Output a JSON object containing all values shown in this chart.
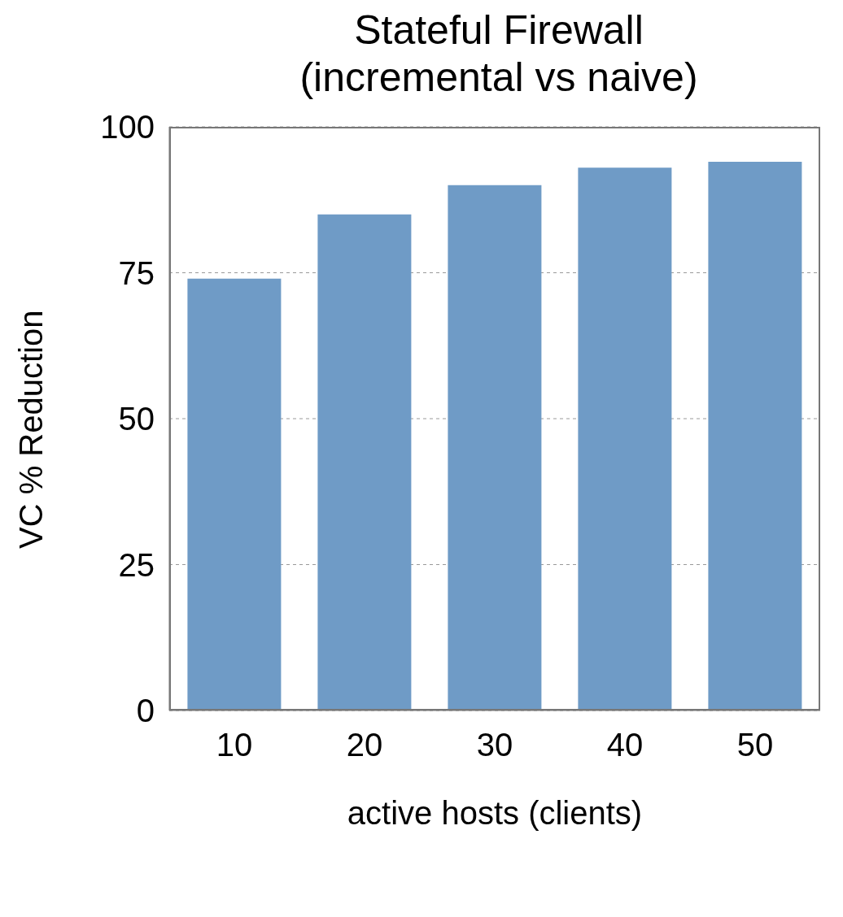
{
  "chart_data": {
    "type": "bar",
    "title": "Stateful Firewall\n(incremental vs naive)",
    "xlabel": "active hosts (clients)",
    "ylabel": "VC % Reduction",
    "categories": [
      "10",
      "20",
      "30",
      "40",
      "50"
    ],
    "values": [
      74,
      85,
      90,
      93,
      94
    ],
    "color": "#6f9bc6",
    "ylim": [
      0,
      100
    ],
    "yticks": [
      0,
      25,
      50,
      75,
      100
    ],
    "grid": "y"
  }
}
